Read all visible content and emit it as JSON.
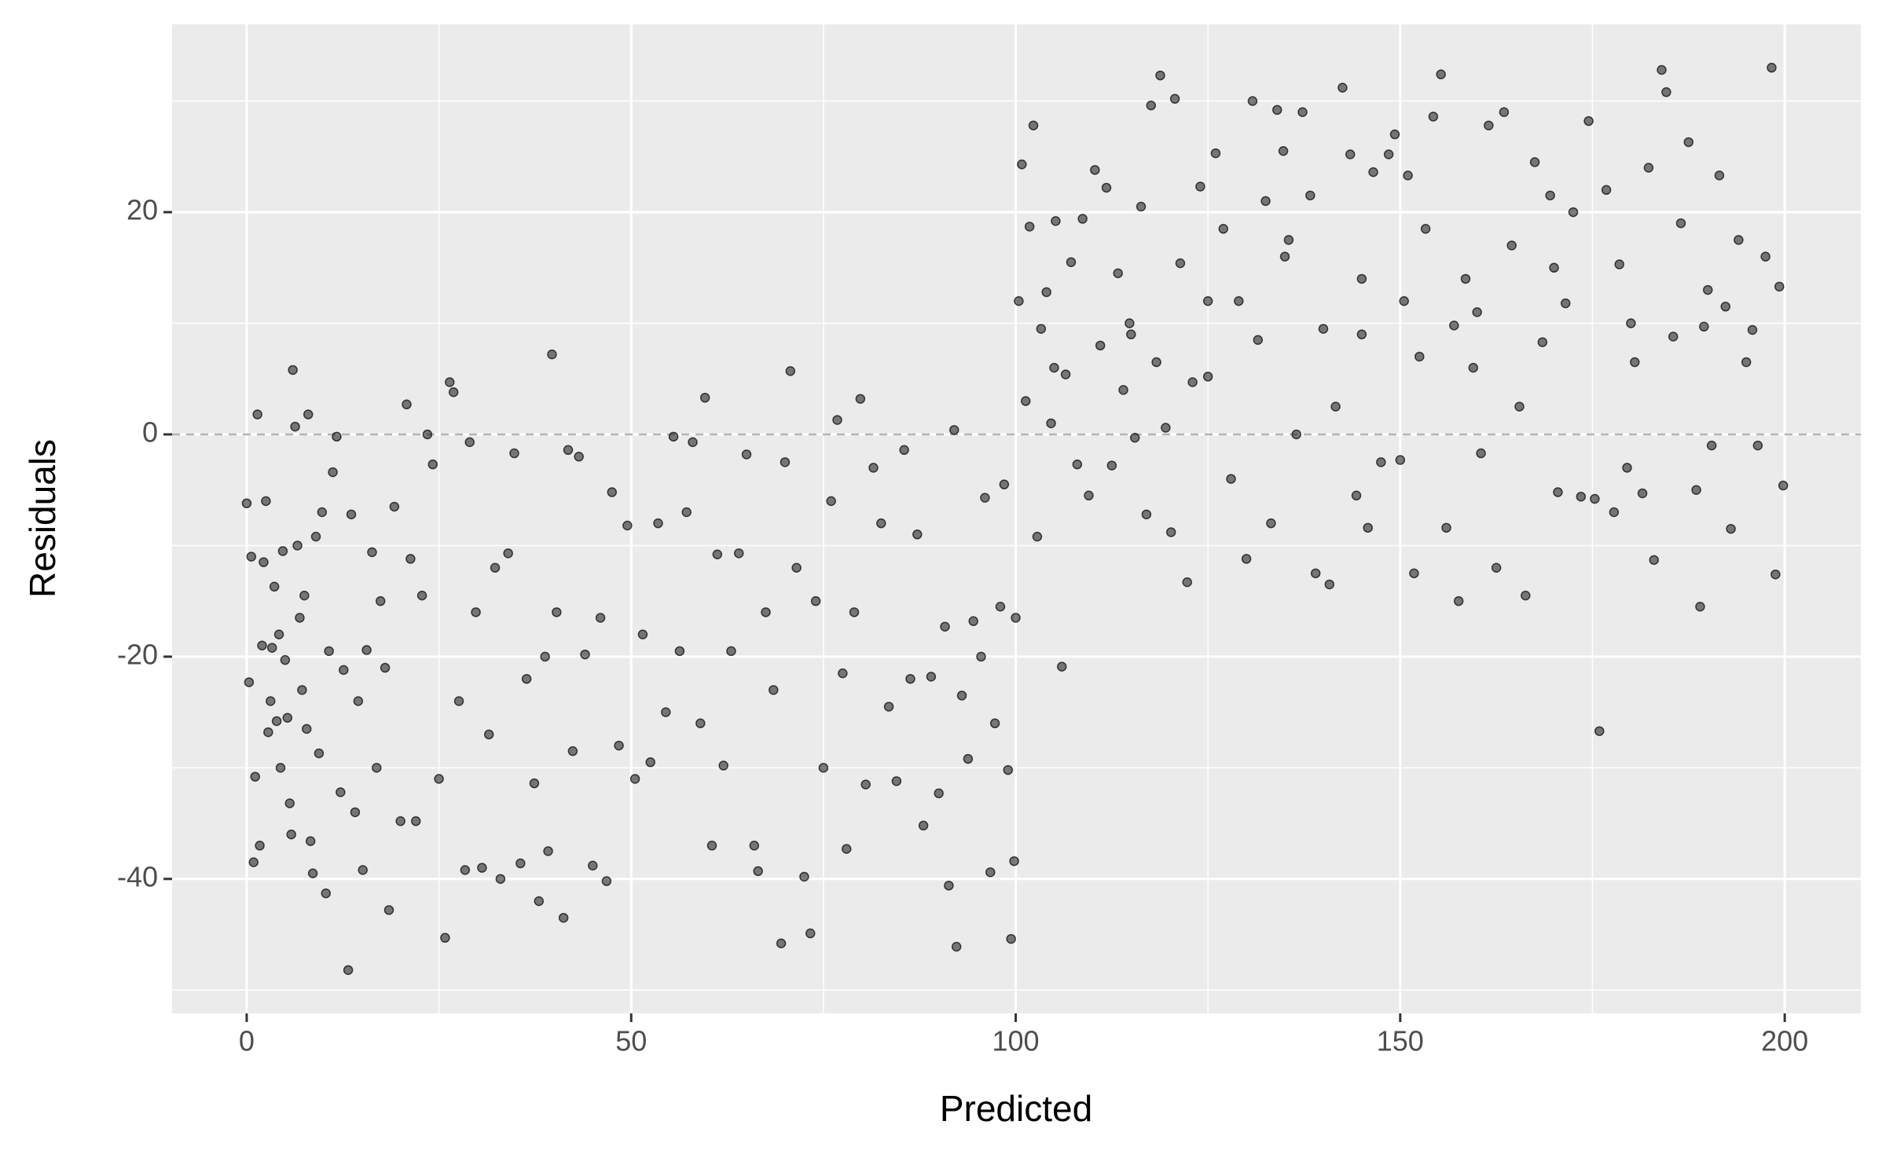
{
  "chart_data": {
    "type": "scatter",
    "x_label": "Predicted",
    "y_label": "Residuals",
    "xlim": [
      -9.7,
      209.9
    ],
    "ylim": [
      -52.1,
      36.9
    ],
    "xticks": [
      0,
      50,
      100,
      150,
      200
    ],
    "yticks": [
      -40,
      -20,
      0,
      20
    ],
    "xminor": [
      25,
      75,
      125,
      175
    ],
    "yminor": [
      -50,
      -30,
      -10,
      10,
      30
    ],
    "grid": true,
    "reference_line": 0,
    "color": "#000000",
    "x": [
      0,
      0.3,
      0.6,
      0.9,
      1.1,
      1.4,
      1.7,
      2.0,
      2.2,
      2.5,
      2.8,
      3.1,
      3.3,
      3.6,
      3.9,
      4.2,
      4.4,
      4.7,
      5.0,
      5.3,
      5.6,
      5.8,
      6.0,
      6.3,
      6.6,
      6.9,
      7.2,
      7.5,
      7.8,
      8.0,
      8.3,
      8.6,
      9,
      9.4,
      9.8,
      10.3,
      10.7,
      11.2,
      11.7,
      12.2,
      12.6,
      13.2,
      13.6,
      14.1,
      14.5,
      15.1,
      15.6,
      16.3,
      16.9,
      17.4,
      18,
      18.5,
      19.2,
      20,
      20.8,
      21.3,
      22,
      22.8,
      23.5,
      24.2,
      25,
      25.8,
      26.4,
      26.9,
      27.6,
      28.4,
      29,
      29.8,
      30.6,
      31.5,
      32.3,
      33,
      34,
      34.8,
      35.6,
      36.4,
      37.4,
      38,
      38.8,
      39.2,
      39.7,
      40.3,
      41.2,
      41.8,
      42.4,
      43.2,
      44,
      45,
      46,
      46.8,
      47.5,
      48.4,
      49.5,
      50.5,
      51.5,
      52.5,
      53.5,
      54.5,
      55.5,
      56.3,
      57.2,
      58,
      59,
      59.6,
      60.5,
      61.2,
      62,
      63,
      64,
      65,
      66,
      66.5,
      67.5,
      68.5,
      69.5,
      70,
      70.7,
      71.5,
      72.5,
      73.3,
      74,
      75,
      76,
      76.8,
      77.5,
      78,
      79,
      79.8,
      80.5,
      81.5,
      82.5,
      83.5,
      84.5,
      85.5,
      86.3,
      87.2,
      88,
      89,
      90,
      90.8,
      91.3,
      92,
      92.3,
      93,
      93.8,
      94.5,
      95.5,
      96,
      96.7,
      97.3,
      98,
      98.5,
      99,
      99.4,
      99.8,
      100,
      100.4,
      100.8,
      101.3,
      101.8,
      102.3,
      102.8,
      103.3,
      104,
      104.6,
      105.2,
      106,
      106.5,
      107.2,
      108,
      108.7,
      109.5,
      110.3,
      111,
      111.8,
      112.5,
      113.3,
      114,
      114.8,
      115.5,
      116.3,
      117,
      117.6,
      118.3,
      118.8,
      119.5,
      120.2,
      120.7,
      121.4,
      122.3,
      123,
      124,
      125,
      126,
      127,
      128,
      129,
      130,
      130.8,
      131.5,
      132.5,
      133.2,
      134,
      134.8,
      135.5,
      136.5,
      137.3,
      138.3,
      139,
      140,
      140.8,
      141.6,
      142.5,
      143.5,
      144.3,
      145,
      145.8,
      146.5,
      147.5,
      148.5,
      149.3,
      150,
      151,
      151.8,
      152.5,
      153.3,
      154.3,
      155.3,
      156,
      157,
      157.6,
      158.5,
      159.5,
      160.5,
      161.5,
      162.5,
      163.5,
      164.5,
      165.5,
      166.3,
      167.5,
      168.5,
      169.5,
      170.5,
      171.5,
      172.5,
      173.5,
      174.5,
      175.3,
      175.9,
      176.8,
      177.8,
      178.5,
      179.5,
      180.5,
      181.5,
      182.3,
      183,
      184,
      184.6,
      185.5,
      186.5,
      187.5,
      188.5,
      189,
      189.5,
      190.5,
      191.5,
      192.3,
      193,
      194,
      195,
      195.8,
      196.5,
      197.5,
      198.3,
      198.8,
      199.3,
      199.8,
      150.5,
      160,
      170,
      180,
      190,
      145,
      135,
      125,
      115,
      105
    ],
    "y": [
      -6.2,
      -22.3,
      -11,
      -38.5,
      -30.8,
      1.8,
      -37,
      -19,
      -11.5,
      -6,
      -26.8,
      -24,
      -19.2,
      -13.7,
      -25.8,
      -18,
      -30,
      -10.5,
      -20.3,
      -25.5,
      -33.2,
      -36,
      5.8,
      0.7,
      -10,
      -16.5,
      -23,
      -14.5,
      -26.5,
      1.8,
      -36.6,
      -39.5,
      -9.2,
      -28.7,
      -7,
      -41.3,
      -19.5,
      -3.4,
      -0.2,
      -32.2,
      -21.2,
      -48.2,
      -7.2,
      -34,
      -24,
      -39.2,
      -19.4,
      -10.6,
      -30,
      -15,
      -21,
      -42.8,
      -6.5,
      -34.8,
      2.7,
      -11.2,
      -34.8,
      -14.5,
      0,
      -2.7,
      -31,
      -45.3,
      4.7,
      3.8,
      -24,
      -39.2,
      -0.7,
      -16,
      -39,
      -27,
      -12,
      -40,
      -10.7,
      -1.7,
      -38.6,
      -22,
      -31.4,
      -42,
      -20,
      -37.5,
      7.2,
      -16,
      -43.5,
      -1.4,
      -28.5,
      -2,
      -19.8,
      -38.8,
      -16.5,
      -40.2,
      -5.2,
      -28,
      -8.2,
      -31,
      -18,
      -29.5,
      -8,
      -25,
      -0.2,
      -19.5,
      -7,
      -0.7,
      -26,
      3.3,
      -37,
      -10.8,
      -29.8,
      -19.5,
      -10.7,
      -1.8,
      -37,
      -39.3,
      -16,
      -23,
      -45.8,
      -2.5,
      5.7,
      -12,
      -39.8,
      -44.9,
      -15,
      -30,
      -6,
      1.3,
      -21.5,
      -37.3,
      -16,
      3.2,
      -31.5,
      -3,
      -8,
      -24.5,
      -31.2,
      -1.4,
      -22,
      -9,
      -35.2,
      -21.8,
      -32.3,
      -17.3,
      -40.6,
      0.4,
      -46.1,
      -23.5,
      -29.2,
      -16.8,
      -20,
      -5.7,
      -39.4,
      -26,
      -15.5,
      -4.5,
      -30.2,
      -45.4,
      -38.4,
      -16.5,
      12,
      24.3,
      3,
      18.7,
      27.8,
      -9.2,
      9.5,
      12.8,
      1,
      19.2,
      -20.9,
      5.4,
      15.5,
      -2.7,
      19.4,
      -5.5,
      23.8,
      8,
      22.2,
      -2.8,
      14.5,
      4,
      10,
      -0.3,
      20.5,
      -7.2,
      29.6,
      6.5,
      32.3,
      0.6,
      -8.8,
      30.2,
      15.4,
      -13.3,
      4.7,
      22.3,
      5.2,
      25.3,
      18.5,
      -4,
      12,
      -11.2,
      30,
      8.5,
      21,
      -8,
      29.2,
      25.5,
      17.5,
      0,
      29,
      21.5,
      -12.5,
      9.5,
      -13.5,
      2.5,
      31.2,
      25.2,
      -5.5,
      14,
      -8.4,
      23.6,
      -2.5,
      25.2,
      27,
      -2.3,
      23.3,
      -12.5,
      7,
      18.5,
      28.6,
      32.4,
      -8.4,
      9.8,
      -15,
      14,
      6,
      -1.7,
      27.8,
      -12,
      29,
      17,
      2.5,
      -14.5,
      24.5,
      8.3,
      21.5,
      -5.2,
      11.8,
      20,
      -5.6,
      28.2,
      -5.8,
      -26.7,
      22,
      -7,
      15.3,
      -3,
      6.5,
      -5.3,
      24,
      -11.3,
      32.8,
      30.8,
      8.8,
      19,
      26.3,
      -5,
      -15.5,
      9.7,
      -1,
      23.3,
      11.5,
      -8.5,
      17.5,
      6.5,
      9.4,
      -1,
      16,
      33,
      -12.6,
      13.3,
      -4.6,
      12,
      11,
      15,
      10,
      13,
      9,
      16,
      12,
      9,
      6
    ]
  }
}
